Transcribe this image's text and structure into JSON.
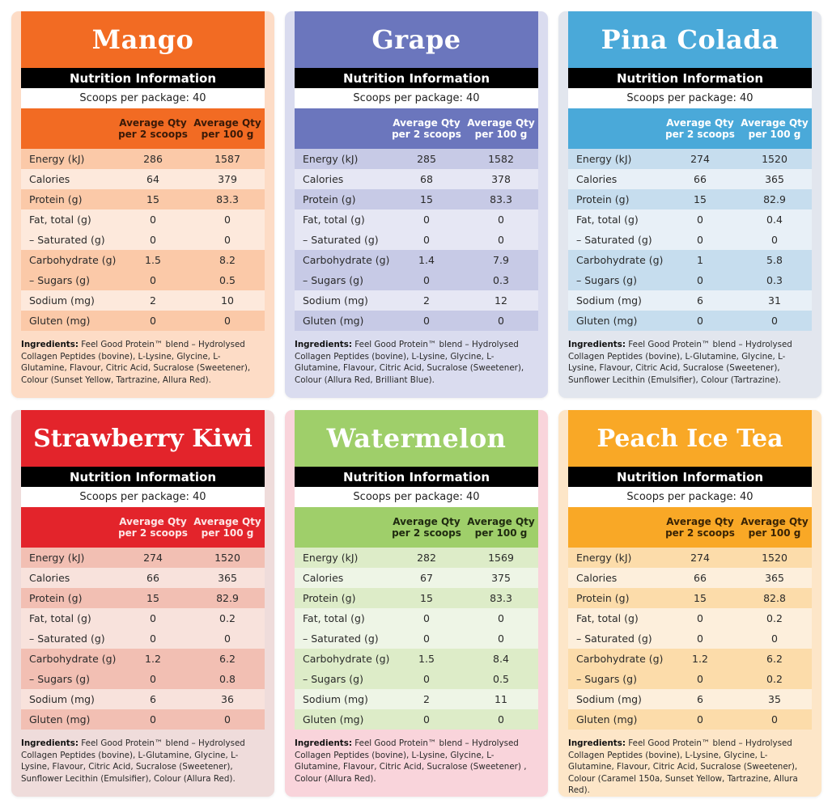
{
  "common": {
    "nutrition_header": "Nutrition Information",
    "scoops": "Scoops per package: 40",
    "col1_line1": "Average Qty",
    "col1_line2": "per 2 scoops",
    "col2_line1": "Average Qty",
    "col2_line2": "per 100 g",
    "ingredients_label": "Ingredients:",
    "row_labels": [
      "Energy (kJ)",
      "Calories",
      "Protein (g)",
      "Fat, total (g)",
      "– Saturated (g)",
      "Carbohydrate (g)",
      "– Sugars (g)",
      "Sodium (mg)",
      "Gluten (mg)"
    ]
  },
  "cards": [
    {
      "name": "Mango",
      "colors": {
        "accent": "#f26b23",
        "card_bg": "#fddcc6",
        "row_dark": "#fbc9a8",
        "row_light": "#fde9dc",
        "colhead_text": "#3a1a08"
      },
      "values_per_2_scoops": [
        "286",
        "64",
        "15",
        "0",
        "0",
        "1.5",
        "0",
        "2",
        "0"
      ],
      "values_per_100g": [
        "1587",
        "379",
        "83.3",
        "0",
        "0",
        "8.2",
        "0.5",
        "10",
        "0"
      ],
      "ingredients": "Feel Good Protein™ blend – Hydrolysed Collagen Peptides (bovine), L-Lysine, Glycine, L-Glutamine, Flavour, Citric Acid, Sucralose (Sweetener), Colour (Sunset Yellow, Tartrazine, Allura Red)."
    },
    {
      "name": "Grape",
      "colors": {
        "accent": "#6b76bd",
        "card_bg": "#dadcef",
        "row_dark": "#c7cae6",
        "row_light": "#e6e7f4",
        "colhead_text": "#ffffff"
      },
      "values_per_2_scoops": [
        "285",
        "68",
        "15",
        "0",
        "0",
        "1.4",
        "0",
        "2",
        "0"
      ],
      "values_per_100g": [
        "1582",
        "378",
        "83.3",
        "0",
        "0",
        "7.9",
        "0.3",
        "12",
        "0"
      ],
      "ingredients": "Feel Good Protein™ blend – Hydrolysed Collagen Peptides (bovine), L-Lysine, Glycine, L-Glutamine, Flavour, Citric Acid, Sucralose (Sweetener), Colour (Allura Red, Brilliant Blue)."
    },
    {
      "name": "Pina Colada",
      "colors": {
        "accent": "#4aa9d9",
        "card_bg": "#e2e6ee",
        "row_dark": "#c6ddee",
        "row_light": "#e8f0f7",
        "colhead_text": "#ffffff"
      },
      "values_per_2_scoops": [
        "274",
        "66",
        "15",
        "0",
        "0",
        "1",
        "0",
        "6",
        "0"
      ],
      "values_per_100g": [
        "1520",
        "365",
        "82.9",
        "0.4",
        "0",
        "5.8",
        "0.3",
        "31",
        "0"
      ],
      "ingredients": "Feel Good Protein™ blend – Hydrolysed Collagen Peptides (bovine), L-Glutamine, Glycine, L-Lysine, Flavour, Citric Acid, Sucralose (Sweetener), Sunflower Lecithin (Emulsifier), Colour (Tartrazine)."
    },
    {
      "name": "Strawberry Kiwi",
      "colors": {
        "accent": "#e3242b",
        "card_bg": "#efdcdb",
        "row_dark": "#f2bfb3",
        "row_light": "#f8e2dc",
        "colhead_text": "#fde6e6"
      },
      "values_per_2_scoops": [
        "274",
        "66",
        "15",
        "0",
        "0",
        "1.2",
        "0",
        "6",
        "0"
      ],
      "values_per_100g": [
        "1520",
        "365",
        "82.9",
        "0.2",
        "0",
        "6.2",
        "0.8",
        "36",
        "0"
      ],
      "ingredients": "Feel Good Protein™ blend – Hydrolysed Collagen Peptides (bovine), L-Glutamine, Glycine, L-Lysine, Flavour, Citric Acid, Sucralose (Sweetener), Sunflower Lecithin (Emulsifier), Colour (Allura Red)."
    },
    {
      "name": "Watermelon",
      "colors": {
        "accent": "#9fcf6a",
        "card_bg": "#f9d4db",
        "row_dark": "#ddecc8",
        "row_light": "#eef5e6",
        "colhead_text": "#1f2a10"
      },
      "values_per_2_scoops": [
        "282",
        "67",
        "15",
        "0",
        "0",
        "1.5",
        "0",
        "2",
        "0"
      ],
      "values_per_100g": [
        "1569",
        "375",
        "83.3",
        "0",
        "0",
        "8.4",
        "0.5",
        "11",
        "0"
      ],
      "ingredients": "Feel Good Protein™ blend – Hydrolysed Collagen Peptides (bovine), L-Lysine, Glycine, L-Glutamine, Flavour, Citric Acid, Sucralose (Sweetener) , Colour (Allura Red)."
    },
    {
      "name": "Peach Ice Tea",
      "colors": {
        "accent": "#f9a826",
        "card_bg": "#fde6c8",
        "row_dark": "#fcdcaa",
        "row_light": "#fdefdc",
        "colhead_text": "#3a2405"
      },
      "values_per_2_scoops": [
        "274",
        "66",
        "15",
        "0",
        "0",
        "1.2",
        "0",
        "6",
        "0"
      ],
      "values_per_100g": [
        "1520",
        "365",
        "82.8",
        "0.2",
        "0",
        "6.2",
        "0.2",
        "35",
        "0"
      ],
      "ingredients": "Feel Good Protein™ blend – Hydrolysed Collagen Peptides (bovine), L-Lysine, Glycine, L-Glutamine, Flavour, Citric Acid, Sucralose (Sweetener), Colour (Caramel 150a, Sunset Yellow, Tartrazine, Allura Red)."
    }
  ]
}
